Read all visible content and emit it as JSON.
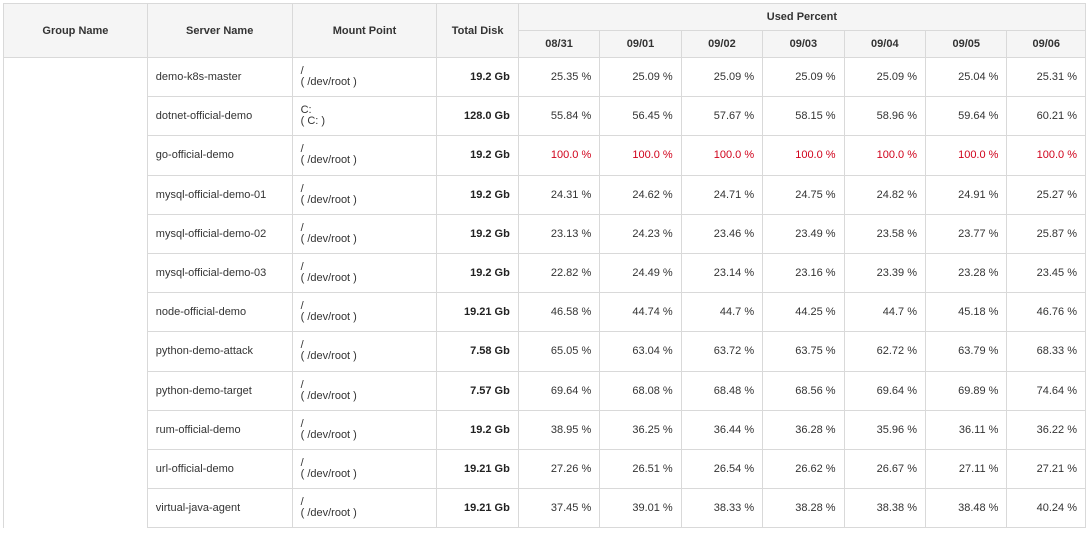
{
  "headers": {
    "group_name": "Group Name",
    "server_name": "Server Name",
    "mount_point": "Mount Point",
    "total_disk": "Total Disk",
    "used_percent": "Used Percent",
    "dates": [
      "08/31",
      "09/01",
      "09/02",
      "09/03",
      "09/04",
      "09/05",
      "09/06"
    ]
  },
  "colors": {
    "alert": "#d0021b"
  },
  "rows": [
    {
      "server": "demo-k8s-master",
      "mount": [
        "/",
        "( /dev/root )"
      ],
      "disk": "19.2 Gb",
      "values": [
        "25.35 %",
        "25.09 %",
        "25.09 %",
        "25.09 %",
        "25.09 %",
        "25.04 %",
        "25.31 %"
      ],
      "alert": false
    },
    {
      "server": "dotnet-official-demo",
      "mount": [
        "C:",
        "( C: )"
      ],
      "disk": "128.0 Gb",
      "values": [
        "55.84 %",
        "56.45 %",
        "57.67 %",
        "58.15 %",
        "58.96 %",
        "59.64 %",
        "60.21 %"
      ],
      "alert": false
    },
    {
      "server": "go-official-demo",
      "mount": [
        "/",
        "( /dev/root )"
      ],
      "disk": "19.2 Gb",
      "values": [
        "100.0 %",
        "100.0 %",
        "100.0 %",
        "100.0 %",
        "100.0 %",
        "100.0 %",
        "100.0 %"
      ],
      "alert": true
    },
    {
      "server": "mysql-official-demo-01",
      "mount": [
        "/",
        "( /dev/root )"
      ],
      "disk": "19.2 Gb",
      "values": [
        "24.31 %",
        "24.62 %",
        "24.71 %",
        "24.75 %",
        "24.82 %",
        "24.91 %",
        "25.27 %"
      ],
      "alert": false
    },
    {
      "server": "mysql-official-demo-02",
      "mount": [
        "/",
        "( /dev/root )"
      ],
      "disk": "19.2 Gb",
      "values": [
        "23.13 %",
        "24.23 %",
        "23.46 %",
        "23.49 %",
        "23.58 %",
        "23.77 %",
        "25.87 %"
      ],
      "alert": false
    },
    {
      "server": "mysql-official-demo-03",
      "mount": [
        "/",
        "( /dev/root )"
      ],
      "disk": "19.2 Gb",
      "values": [
        "22.82 %",
        "24.49 %",
        "23.14 %",
        "23.16 %",
        "23.39 %",
        "23.28 %",
        "23.45 %"
      ],
      "alert": false
    },
    {
      "server": "node-official-demo",
      "mount": [
        "/",
        "( /dev/root )"
      ],
      "disk": "19.21 Gb",
      "values": [
        "46.58 %",
        "44.74 %",
        "44.7 %",
        "44.25 %",
        "44.7 %",
        "45.18 %",
        "46.76 %"
      ],
      "alert": false
    },
    {
      "server": "python-demo-attack",
      "mount": [
        "/",
        "( /dev/root )"
      ],
      "disk": "7.58 Gb",
      "values": [
        "65.05 %",
        "63.04 %",
        "63.72 %",
        "63.75 %",
        "62.72 %",
        "63.79 %",
        "68.33 %"
      ],
      "alert": false
    },
    {
      "server": "python-demo-target",
      "mount": [
        "/",
        "( /dev/root )"
      ],
      "disk": "7.57 Gb",
      "values": [
        "69.64 %",
        "68.08 %",
        "68.48 %",
        "68.56 %",
        "69.64 %",
        "69.89 %",
        "74.64 %"
      ],
      "alert": false
    },
    {
      "server": "rum-official-demo",
      "mount": [
        "/",
        "( /dev/root )"
      ],
      "disk": "19.2 Gb",
      "values": [
        "38.95 %",
        "36.25 %",
        "36.44 %",
        "36.28 %",
        "35.96 %",
        "36.11 %",
        "36.22 %"
      ],
      "alert": false
    },
    {
      "server": "url-official-demo",
      "mount": [
        "/",
        "( /dev/root )"
      ],
      "disk": "19.21 Gb",
      "values": [
        "27.26 %",
        "26.51 %",
        "26.54 %",
        "26.62 %",
        "26.67 %",
        "27.11 %",
        "27.21 %"
      ],
      "alert": false
    },
    {
      "server": "virtual-java-agent",
      "mount": [
        "/",
        "( /dev/root )"
      ],
      "disk": "19.21 Gb",
      "values": [
        "37.45 %",
        "39.01 %",
        "38.33 %",
        "38.28 %",
        "38.38 %",
        "38.48 %",
        "40.24 %"
      ],
      "alert": false
    }
  ]
}
